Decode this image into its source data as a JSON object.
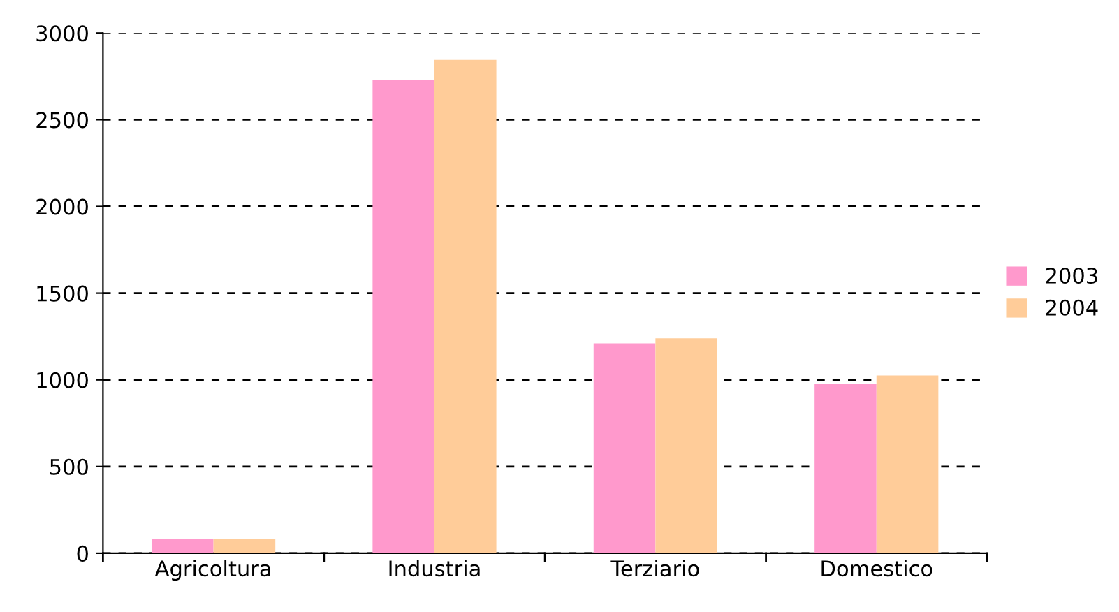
{
  "chart_data": {
    "type": "bar",
    "categories": [
      "Agricoltura",
      "Industria",
      "Terziario",
      "Domestico"
    ],
    "series": [
      {
        "name": "2003",
        "color": "#ff99cc",
        "values": [
          80,
          2730,
          1210,
          975
        ]
      },
      {
        "name": "2004",
        "color": "#ffcc99",
        "values": [
          80,
          2845,
          1240,
          1025
        ]
      }
    ],
    "ylim": [
      0,
      3000
    ],
    "yticks": [
      0,
      500,
      1000,
      1500,
      2000,
      2500,
      3000
    ],
    "grid": "y",
    "legend": "right"
  }
}
